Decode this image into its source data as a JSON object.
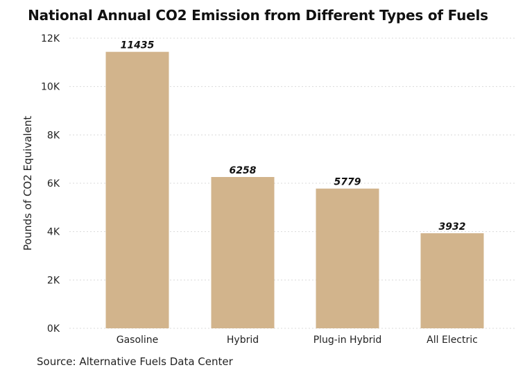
{
  "chart_data": {
    "type": "bar",
    "title": "National Annual CO2 Emission from Different Types of Fuels",
    "xlabel": "",
    "ylabel": "Pounds of CO2 Equivalent",
    "categories": [
      "Gasoline",
      "Hybrid",
      "Plug-in Hybrid",
      "All Electric"
    ],
    "values": [
      11435,
      6258,
      5779,
      3932
    ],
    "data_labels": [
      "11435",
      "6258",
      "5779",
      "3932"
    ],
    "ylim": [
      0,
      12000
    ],
    "yticks": [
      0,
      2000,
      4000,
      6000,
      8000,
      10000,
      12000
    ],
    "ytick_labels": [
      "0K",
      "2K",
      "4K",
      "6K",
      "8K",
      "10K",
      "12K"
    ],
    "bar_color": "#d2b48c",
    "grid": true,
    "source": "Source: Alternative Fuels Data Center"
  }
}
